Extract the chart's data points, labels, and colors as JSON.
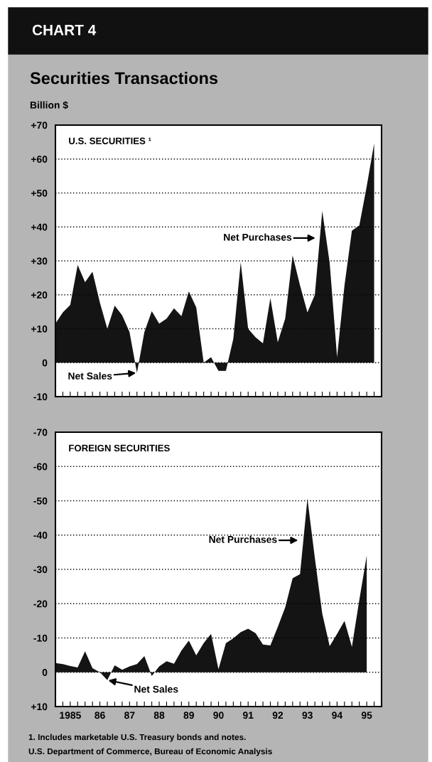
{
  "chart_data": [
    {
      "type": "area",
      "title": "Securities Transactions",
      "subtitle": "U.S. SECURITIES ¹",
      "ylabel": "Billion $",
      "annotations": [
        "CHART 4",
        "Net Purchases",
        {
          "text": "Net Sales",
          "x": 1987.25,
          "y": -3
        }
      ],
      "series": [
        {
          "color": "#141414",
          "x": [
            1984.5,
            1984.75,
            1985.0,
            1985.25,
            1985.5,
            1985.75,
            1986.0,
            1986.25,
            1986.5,
            1986.75,
            1987.0,
            1987.25,
            1987.5,
            1987.75,
            1988.0,
            1988.25,
            1988.5,
            1988.75,
            1989.0,
            1989.25,
            1989.5,
            1989.75,
            1990.0,
            1990.25,
            1990.5,
            1990.75,
            1991.0,
            1991.25,
            1991.5,
            1991.75,
            1992.0,
            1992.25,
            1992.5,
            1992.75,
            1993.0,
            1993.25,
            1993.5,
            1993.75,
            1994.0,
            1994.25,
            1994.5,
            1994.75,
            1995.0,
            1995.25
          ],
          "values": [
            11.5,
            14.8,
            17,
            28.8,
            23.7,
            26.8,
            17.7,
            10,
            16.8,
            14,
            9,
            -3,
            9,
            15.2,
            11.5,
            13,
            16,
            13.7,
            21,
            16.3,
            0,
            1.6,
            -2.4,
            -2.4,
            7,
            29.6,
            10,
            7.5,
            5.7,
            19,
            6,
            13,
            31.6,
            22.8,
            14.8,
            20,
            44.7,
            29.4,
            1.6,
            22.8,
            38.9,
            40.4,
            52,
            64.6
          ]
        }
      ],
      "ylim": [
        -10,
        70
      ],
      "yticks": [
        {
          "value": -10,
          "label": "-10"
        },
        {
          "value": 0,
          "label": "0"
        },
        {
          "value": 10,
          "label": "+10"
        },
        {
          "value": 20,
          "label": "+20"
        },
        {
          "value": 30,
          "label": "+30"
        },
        {
          "value": 40,
          "label": "+40"
        },
        {
          "value": 50,
          "label": "+50"
        },
        {
          "value": 60,
          "label": "+60"
        },
        {
          "value": 70,
          "label": "+70"
        }
      ],
      "xlim": [
        1984.5,
        1995.5
      ],
      "xticks": [
        {
          "value": 1984.75,
          "label": null
        },
        {
          "value": 1985,
          "label": null
        },
        {
          "value": 1985.25,
          "label": null
        },
        {
          "value": 1985.5,
          "label": null
        },
        {
          "value": 1985.75,
          "label": null
        },
        {
          "value": 1986,
          "label": null
        },
        {
          "value": 1986.25,
          "label": null
        },
        {
          "value": 1986.5,
          "label": null
        },
        {
          "value": 1986.75,
          "label": null
        },
        {
          "value": 1987,
          "label": null
        },
        {
          "value": 1987.25,
          "label": null
        },
        {
          "value": 1987.5,
          "label": null
        },
        {
          "value": 1987.75,
          "label": null
        },
        {
          "value": 1988,
          "label": null
        },
        {
          "value": 1988.25,
          "label": null
        },
        {
          "value": 1988.5,
          "label": null
        },
        {
          "value": 1988.75,
          "label": null
        },
        {
          "value": 1989,
          "label": null
        },
        {
          "value": 1989.25,
          "label": null
        },
        {
          "value": 1989.5,
          "label": null
        },
        {
          "value": 1989.75,
          "label": null
        },
        {
          "value": 1990,
          "label": null
        },
        {
          "value": 1990.25,
          "label": null
        },
        {
          "value": 1990.5,
          "label": null
        },
        {
          "value": 1990.75,
          "label": null
        },
        {
          "value": 1991,
          "label": null
        },
        {
          "value": 1991.25,
          "label": null
        },
        {
          "value": 1991.5,
          "label": null
        },
        {
          "value": 1991.75,
          "label": null
        },
        {
          "value": 1992,
          "label": null
        },
        {
          "value": 1992.25,
          "label": null
        },
        {
          "value": 1992.5,
          "label": null
        },
        {
          "value": 1992.75,
          "label": null
        },
        {
          "value": 1993,
          "label": null
        },
        {
          "value": 1993.25,
          "label": null
        },
        {
          "value": 1993.5,
          "label": null
        },
        {
          "value": 1993.75,
          "label": null
        },
        {
          "value": 1994,
          "label": null
        },
        {
          "value": 1994.25,
          "label": null
        },
        {
          "value": 1994.5,
          "label": null
        },
        {
          "value": 1994.75,
          "label": null
        },
        {
          "value": 1995,
          "label": null
        },
        {
          "value": 1995.25,
          "label": null
        }
      ],
      "tick_labels": "y",
      "grid": "y"
    },
    {
      "type": "area",
      "subtitle": "FOREIGN SECURITIES",
      "annotations": [
        "Net Purchases",
        {
          "text": "Net Sales",
          "x": 1986.25,
          "y": 2.3
        },
        "1. Includes marketable U.S. Treasury bonds and notes.",
        "U.S. Department of Commerce, Bureau of Economic Analysis"
      ],
      "series": [
        {
          "color": "#141414",
          "x": [
            1984.5,
            1984.75,
            1985.0,
            1985.25,
            1985.5,
            1985.75,
            1986.0,
            1986.25,
            1986.5,
            1986.75,
            1987.0,
            1987.25,
            1987.5,
            1987.75,
            1988.0,
            1988.25,
            1988.5,
            1988.75,
            1989.0,
            1989.25,
            1989.5,
            1989.75,
            1990.0,
            1990.25,
            1990.5,
            1990.75,
            1991.0,
            1991.25,
            1991.5,
            1991.75,
            1992.0,
            1992.25,
            1992.5,
            1992.75,
            1993.0,
            1993.25,
            1993.5,
            1993.75,
            1994.0,
            1994.25,
            1994.5,
            1994.75,
            1995.0
          ],
          "values": [
            -2.7,
            -2.4,
            -1.8,
            -1.4,
            -6.1,
            -1.2,
            0,
            2.3,
            -2,
            -0.7,
            -1.7,
            -2.4,
            -4.7,
            1.1,
            -1.7,
            -3.2,
            -2.5,
            -6.3,
            -9.2,
            -4.9,
            -8.5,
            -11.2,
            -0.9,
            -8.5,
            -9.9,
            -11.7,
            -12.7,
            -11.4,
            -8.1,
            -7.8,
            -13.2,
            -18.9,
            -27.4,
            -28.6,
            -50.6,
            -33.3,
            -17.1,
            -7.6,
            -11.2,
            -15,
            -7.4,
            -21.1,
            -34
          ]
        }
      ],
      "ylim": [
        10,
        -70
      ],
      "yticks": [
        {
          "value": 10,
          "label": "+10"
        },
        {
          "value": 0,
          "label": "0"
        },
        {
          "value": -10,
          "label": "-10"
        },
        {
          "value": -20,
          "label": "-20"
        },
        {
          "value": -30,
          "label": "-30"
        },
        {
          "value": -40,
          "label": "-40"
        },
        {
          "value": -50,
          "label": "-50"
        },
        {
          "value": -60,
          "label": "-60"
        },
        {
          "value": -70,
          "label": "-70"
        }
      ],
      "xlim": [
        1984.5,
        1995.5
      ],
      "xticks": [
        {
          "value": 1984.75,
          "label": null
        },
        {
          "value": 1985,
          "label": "1985"
        },
        {
          "value": 1985.25,
          "label": null
        },
        {
          "value": 1985.5,
          "label": null
        },
        {
          "value": 1985.75,
          "label": null
        },
        {
          "value": 1986,
          "label": "86"
        },
        {
          "value": 1986.25,
          "label": null
        },
        {
          "value": 1986.5,
          "label": null
        },
        {
          "value": 1986.75,
          "label": null
        },
        {
          "value": 1987,
          "label": "87"
        },
        {
          "value": 1987.25,
          "label": null
        },
        {
          "value": 1987.5,
          "label": null
        },
        {
          "value": 1987.75,
          "label": null
        },
        {
          "value": 1988,
          "label": "88"
        },
        {
          "value": 1988.25,
          "label": null
        },
        {
          "value": 1988.5,
          "label": null
        },
        {
          "value": 1988.75,
          "label": null
        },
        {
          "value": 1989,
          "label": "89"
        },
        {
          "value": 1989.25,
          "label": null
        },
        {
          "value": 1989.5,
          "label": null
        },
        {
          "value": 1989.75,
          "label": null
        },
        {
          "value": 1990,
          "label": "90"
        },
        {
          "value": 1990.25,
          "label": null
        },
        {
          "value": 1990.5,
          "label": null
        },
        {
          "value": 1990.75,
          "label": null
        },
        {
          "value": 1991,
          "label": "91"
        },
        {
          "value": 1991.25,
          "label": null
        },
        {
          "value": 1991.5,
          "label": null
        },
        {
          "value": 1991.75,
          "label": null
        },
        {
          "value": 1992,
          "label": "92"
        },
        {
          "value": 1992.25,
          "label": null
        },
        {
          "value": 1992.5,
          "label": null
        },
        {
          "value": 1992.75,
          "label": null
        },
        {
          "value": 1993,
          "label": "93"
        },
        {
          "value": 1993.25,
          "label": null
        },
        {
          "value": 1993.5,
          "label": null
        },
        {
          "value": 1993.75,
          "label": null
        },
        {
          "value": 1994,
          "label": "94"
        },
        {
          "value": 1994.25,
          "label": null
        },
        {
          "value": 1994.5,
          "label": null
        },
        {
          "value": 1994.75,
          "label": null
        },
        {
          "value": 1995,
          "label": "95"
        },
        {
          "value": 1995.25,
          "label": null
        }
      ],
      "grid": "y"
    }
  ]
}
